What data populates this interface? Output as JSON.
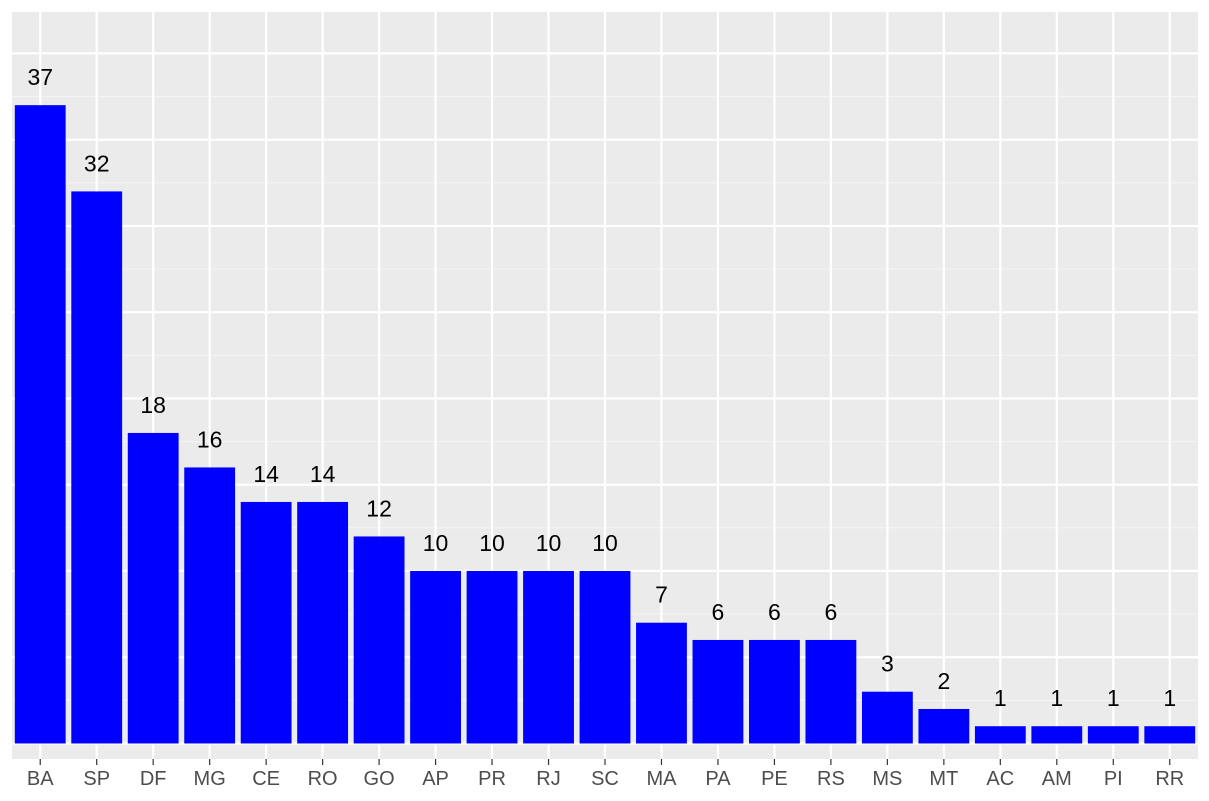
{
  "chart_data": {
    "type": "bar",
    "title": "",
    "xlabel": "",
    "ylabel": "",
    "categories": [
      "BA",
      "SP",
      "DF",
      "MG",
      "CE",
      "RO",
      "GO",
      "AP",
      "PR",
      "RJ",
      "SC",
      "MA",
      "PA",
      "PE",
      "RS",
      "MS",
      "MT",
      "AC",
      "AM",
      "PI",
      "RR"
    ],
    "values": [
      37,
      32,
      18,
      16,
      14,
      14,
      12,
      10,
      10,
      10,
      10,
      7,
      6,
      6,
      6,
      3,
      2,
      1,
      1,
      1,
      1
    ],
    "data_labels": [
      "37",
      "32",
      "18",
      "16",
      "14",
      "14",
      "12",
      "10",
      "10",
      "10",
      "10",
      "7",
      "6",
      "6",
      "6",
      "3",
      "2",
      "1",
      "1",
      "1",
      "1"
    ],
    "ylim": [
      -0.9,
      42.4
    ],
    "y_gridlines": [
      0,
      5,
      10,
      15,
      20,
      25,
      30,
      35,
      40
    ],
    "y_tick_labels_shown": false,
    "grid": true,
    "legend": "none",
    "colors": {
      "bar": "#0000ff",
      "panel_background": "#ebebeb",
      "grid_major": "#ffffff",
      "grid_minor": "#f4f4f4",
      "axis_text": "#4d4d4d",
      "label_text": "#000000"
    }
  }
}
